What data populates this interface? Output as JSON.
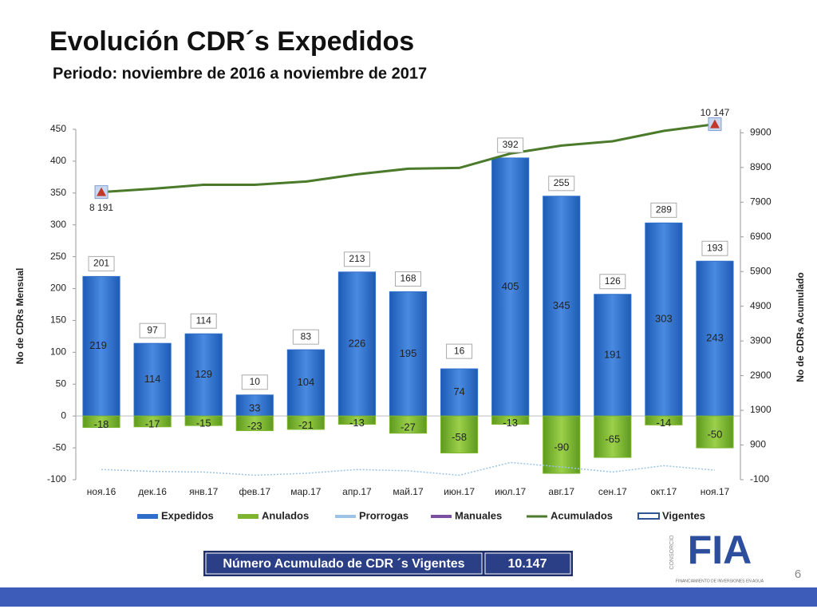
{
  "slide": {
    "page_number": "6",
    "summary_label": "Número Acumulado de CDR ´s Vigentes",
    "summary_value": "10.147",
    "logo_top": "CONSORCIO",
    "logo_text": "FIA",
    "logo_caption": "FINANCIAMIENTO DE INVERSIONES EN AGUA"
  },
  "chart_data": {
    "type": "bar",
    "title": "Evolución CDR´s Expedidos",
    "subtitle": "Periodo: noviembre de 2016 a noviembre de 2017",
    "ylabel": "No de CDRs Mensual",
    "y2label": "No de CDRs Acumulado",
    "categories": [
      "ноя.16",
      "дек.16",
      "янв.17",
      "фев.17",
      "мар.17",
      "апр.17",
      "май.17",
      "июн.17",
      "июл.17",
      "авг.17",
      "сен.17",
      "окт.17",
      "ноя.17"
    ],
    "series": [
      {
        "name": "Expedidos",
        "color": "#2f6fca",
        "values": [
          219,
          114,
          129,
          33,
          104,
          226,
          195,
          74,
          405,
          345,
          191,
          303,
          243
        ]
      },
      {
        "name": "Anulados",
        "color": "#7db52d",
        "values": [
          -18,
          -17,
          -15,
          -23,
          -21,
          -13,
          -27,
          -58,
          -13,
          -90,
          -65,
          -14,
          -50
        ]
      },
      {
        "name": "Prorrogas",
        "color": "#9dc3e6",
        "values": [
          -84,
          -87,
          -88,
          -93,
          -90,
          -84,
          -86,
          -93,
          -73,
          -80,
          -88,
          -78,
          -85
        ]
      },
      {
        "name": "Manuales",
        "color": "#7e4fa0",
        "values": [
          null,
          null,
          null,
          null,
          null,
          null,
          null,
          null,
          null,
          null,
          null,
          null,
          null
        ]
      },
      {
        "name": "Acumulados",
        "color": "#4a7a2a",
        "axis": "y2",
        "values": [
          8191,
          8287,
          8402,
          8402,
          8494,
          8702,
          8863,
          8886,
          9301,
          9531,
          9655,
          9954,
          10147
        ],
        "value_labels": [
          "8 191",
          null,
          null,
          null,
          null,
          null,
          null,
          null,
          null,
          null,
          null,
          null,
          "10 147"
        ]
      },
      {
        "name": "Vigentes",
        "color": "#2f5597",
        "values": [
          null,
          null,
          null,
          null,
          null,
          null,
          null,
          null,
          null,
          null,
          null,
          null,
          null
        ]
      }
    ],
    "totals": [
      201,
      97,
      114,
      10,
      83,
      213,
      168,
      16,
      392,
      255,
      126,
      289,
      193
    ],
    "ylim": [
      -100,
      450
    ],
    "yticks": [
      -100,
      -50,
      0,
      50,
      100,
      150,
      200,
      250,
      300,
      350,
      400,
      450
    ],
    "y2lim": [
      -100,
      10000
    ],
    "y2ticks": [
      -100,
      900,
      1900,
      2900,
      3900,
      4900,
      5900,
      6900,
      7900,
      8900,
      9900
    ],
    "legend": "bottom"
  }
}
